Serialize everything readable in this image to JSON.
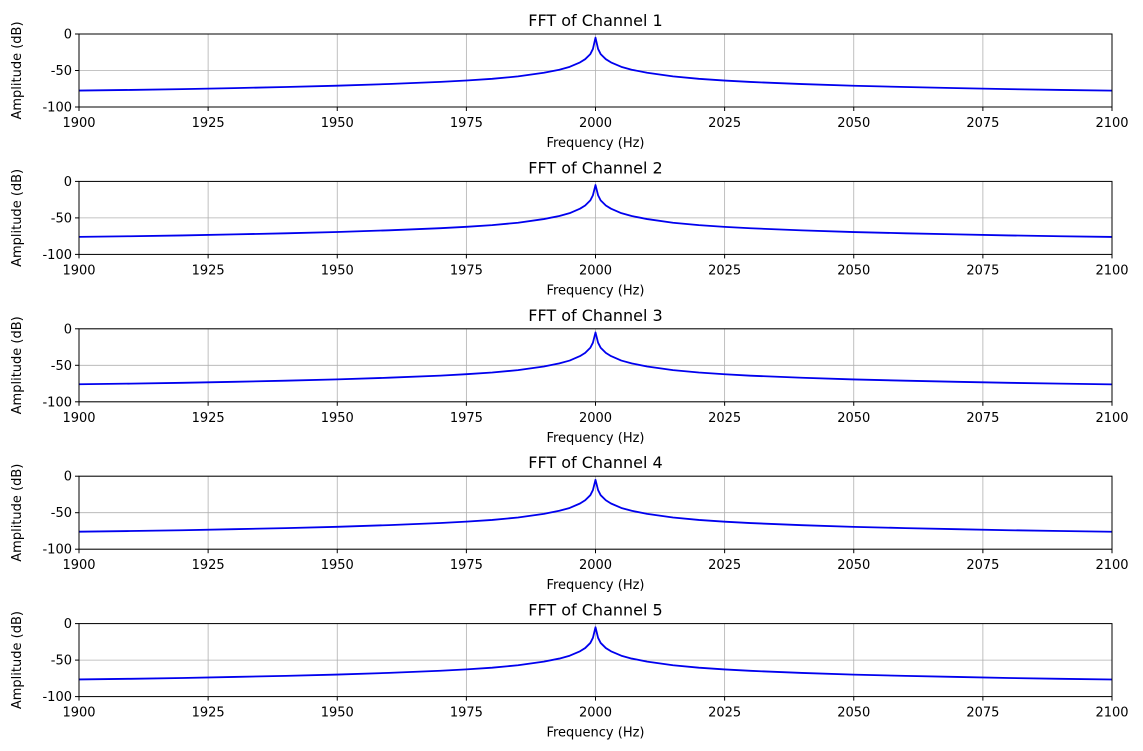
{
  "chart_data": [
    {
      "type": "line",
      "title": "FFT of Channel 1",
      "xlabel": "Frequency (Hz)",
      "ylabel": "Amplitude (dB)",
      "xlim": [
        1900,
        2100
      ],
      "ylim": [
        -100,
        0
      ],
      "xticks": [
        1900,
        1925,
        1950,
        1975,
        2000,
        2025,
        2050,
        2075,
        2100
      ],
      "yticks": [
        0,
        -50,
        -100
      ],
      "grid": true,
      "line_color": "#0000ee",
      "series": [
        {
          "x": [
            1900,
            1910,
            1920,
            1930,
            1940,
            1950,
            1960,
            1970,
            1975,
            1980,
            1985,
            1990,
            1993,
            1995,
            1997,
            1998,
            1999,
            1999.5,
            2000,
            2000.5,
            2001,
            2002,
            2003,
            2005,
            2007,
            2010,
            2015,
            2020,
            2025,
            2030,
            2040,
            2050,
            2060,
            2070,
            2080,
            2090,
            2100
          ],
          "y": [
            -77.5,
            -76.6,
            -75.5,
            -74.1,
            -72.6,
            -70.8,
            -68.5,
            -65.6,
            -63.7,
            -61.4,
            -58.1,
            -53.1,
            -48.9,
            -45.0,
            -38.9,
            -34.5,
            -27.5,
            -20.5,
            -5.0,
            -20.5,
            -27.5,
            -34.5,
            -38.9,
            -45.0,
            -48.9,
            -53.1,
            -58.1,
            -61.4,
            -63.8,
            -65.7,
            -68.6,
            -70.9,
            -72.6,
            -74.1,
            -75.5,
            -76.6,
            -77.6
          ]
        }
      ]
    },
    {
      "type": "line",
      "title": "FFT of Channel 2",
      "xlabel": "Frequency (Hz)",
      "ylabel": "Amplitude (dB)",
      "xlim": [
        1900,
        2100
      ],
      "ylim": [
        -100,
        0
      ],
      "xticks": [
        1900,
        1925,
        1950,
        1975,
        2000,
        2025,
        2050,
        2075,
        2100
      ],
      "yticks": [
        0,
        -50,
        -100
      ],
      "grid": true,
      "line_color": "#0000ee",
      "series": [
        {
          "x": [
            1900,
            1910,
            1920,
            1930,
            1940,
            1950,
            1960,
            1970,
            1975,
            1980,
            1985,
            1990,
            1993,
            1995,
            1997,
            1998,
            1999,
            1999.5,
            2000,
            2000.5,
            2001,
            2002,
            2003,
            2005,
            2007,
            2010,
            2015,
            2020,
            2025,
            2030,
            2040,
            2050,
            2060,
            2070,
            2080,
            2090,
            2100
          ],
          "y": [
            -76.0,
            -75.1,
            -74.0,
            -72.6,
            -71.1,
            -69.3,
            -67.0,
            -64.1,
            -62.2,
            -59.9,
            -56.6,
            -51.6,
            -47.4,
            -43.5,
            -37.4,
            -33.0,
            -26.0,
            -19.0,
            -5.0,
            -19.0,
            -26.0,
            -33.0,
            -37.4,
            -43.5,
            -47.4,
            -51.6,
            -56.6,
            -59.9,
            -62.3,
            -64.2,
            -67.1,
            -69.4,
            -71.1,
            -72.6,
            -74.0,
            -75.1,
            -76.1
          ]
        }
      ]
    },
    {
      "type": "line",
      "title": "FFT of Channel 3",
      "xlabel": "Frequency (Hz)",
      "ylabel": "Amplitude (dB)",
      "xlim": [
        1900,
        2100
      ],
      "ylim": [
        -100,
        0
      ],
      "xticks": [
        1900,
        1925,
        1950,
        1975,
        2000,
        2025,
        2050,
        2075,
        2100
      ],
      "yticks": [
        0,
        -50,
        -100
      ],
      "grid": true,
      "line_color": "#0000ee",
      "series": [
        {
          "x": [
            1900,
            1910,
            1920,
            1930,
            1940,
            1950,
            1960,
            1970,
            1975,
            1980,
            1985,
            1990,
            1993,
            1995,
            1997,
            1998,
            1999,
            1999.5,
            2000,
            2000.5,
            2001,
            2002,
            2003,
            2005,
            2007,
            2010,
            2015,
            2020,
            2025,
            2030,
            2040,
            2050,
            2060,
            2070,
            2080,
            2090,
            2100
          ],
          "y": [
            -76.0,
            -75.1,
            -74.0,
            -72.6,
            -71.1,
            -69.3,
            -67.0,
            -64.1,
            -62.2,
            -59.9,
            -56.6,
            -51.6,
            -47.4,
            -43.5,
            -37.4,
            -33.0,
            -26.0,
            -19.0,
            -5.0,
            -19.0,
            -26.0,
            -33.0,
            -37.4,
            -43.5,
            -47.4,
            -51.6,
            -56.6,
            -59.9,
            -62.3,
            -64.2,
            -67.1,
            -69.4,
            -71.1,
            -72.6,
            -74.0,
            -75.1,
            -76.1
          ]
        }
      ]
    },
    {
      "type": "line",
      "title": "FFT of Channel 4",
      "xlabel": "Frequency (Hz)",
      "ylabel": "Amplitude (dB)",
      "xlim": [
        1900,
        2100
      ],
      "ylim": [
        -100,
        0
      ],
      "xticks": [
        1900,
        1925,
        1950,
        1975,
        2000,
        2025,
        2050,
        2075,
        2100
      ],
      "yticks": [
        0,
        -50,
        -100
      ],
      "grid": true,
      "line_color": "#0000ee",
      "series": [
        {
          "x": [
            1900,
            1910,
            1920,
            1930,
            1940,
            1950,
            1960,
            1970,
            1975,
            1980,
            1985,
            1990,
            1993,
            1995,
            1997,
            1998,
            1999,
            1999.5,
            2000,
            2000.5,
            2001,
            2002,
            2003,
            2005,
            2007,
            2010,
            2015,
            2020,
            2025,
            2030,
            2040,
            2050,
            2060,
            2070,
            2080,
            2090,
            2100
          ],
          "y": [
            -76.0,
            -75.1,
            -74.0,
            -72.6,
            -71.1,
            -69.3,
            -67.0,
            -64.1,
            -62.2,
            -59.9,
            -56.6,
            -51.6,
            -47.4,
            -43.5,
            -37.4,
            -33.0,
            -26.0,
            -19.0,
            -5.0,
            -19.0,
            -26.0,
            -33.0,
            -37.4,
            -43.5,
            -47.4,
            -51.6,
            -56.6,
            -59.9,
            -62.3,
            -64.2,
            -67.1,
            -69.4,
            -71.1,
            -72.6,
            -74.0,
            -75.1,
            -76.1
          ]
        }
      ]
    },
    {
      "type": "line",
      "title": "FFT of Channel 5",
      "xlabel": "Frequency (Hz)",
      "ylabel": "Amplitude (dB)",
      "xlim": [
        1900,
        2100
      ],
      "ylim": [
        -100,
        0
      ],
      "xticks": [
        1900,
        1925,
        1950,
        1975,
        2000,
        2025,
        2050,
        2075,
        2100
      ],
      "yticks": [
        0,
        -50,
        -100
      ],
      "grid": true,
      "line_color": "#0000ee",
      "series": [
        {
          "x": [
            1900,
            1910,
            1920,
            1930,
            1940,
            1950,
            1960,
            1970,
            1975,
            1980,
            1985,
            1990,
            1993,
            1995,
            1997,
            1998,
            1999,
            1999.5,
            2000,
            2000.5,
            2001,
            2002,
            2003,
            2005,
            2007,
            2010,
            2015,
            2020,
            2025,
            2030,
            2040,
            2050,
            2060,
            2070,
            2080,
            2090,
            2100
          ],
          "y": [
            -76.5,
            -75.6,
            -74.5,
            -73.1,
            -71.6,
            -69.8,
            -67.5,
            -64.6,
            -62.7,
            -60.4,
            -57.1,
            -52.1,
            -47.9,
            -44.0,
            -37.9,
            -33.5,
            -26.5,
            -19.5,
            -5.0,
            -19.5,
            -26.5,
            -33.5,
            -37.9,
            -44.0,
            -47.9,
            -52.1,
            -57.1,
            -60.4,
            -62.8,
            -64.7,
            -67.6,
            -69.9,
            -71.6,
            -73.1,
            -74.5,
            -75.6,
            -76.6
          ]
        }
      ]
    }
  ]
}
